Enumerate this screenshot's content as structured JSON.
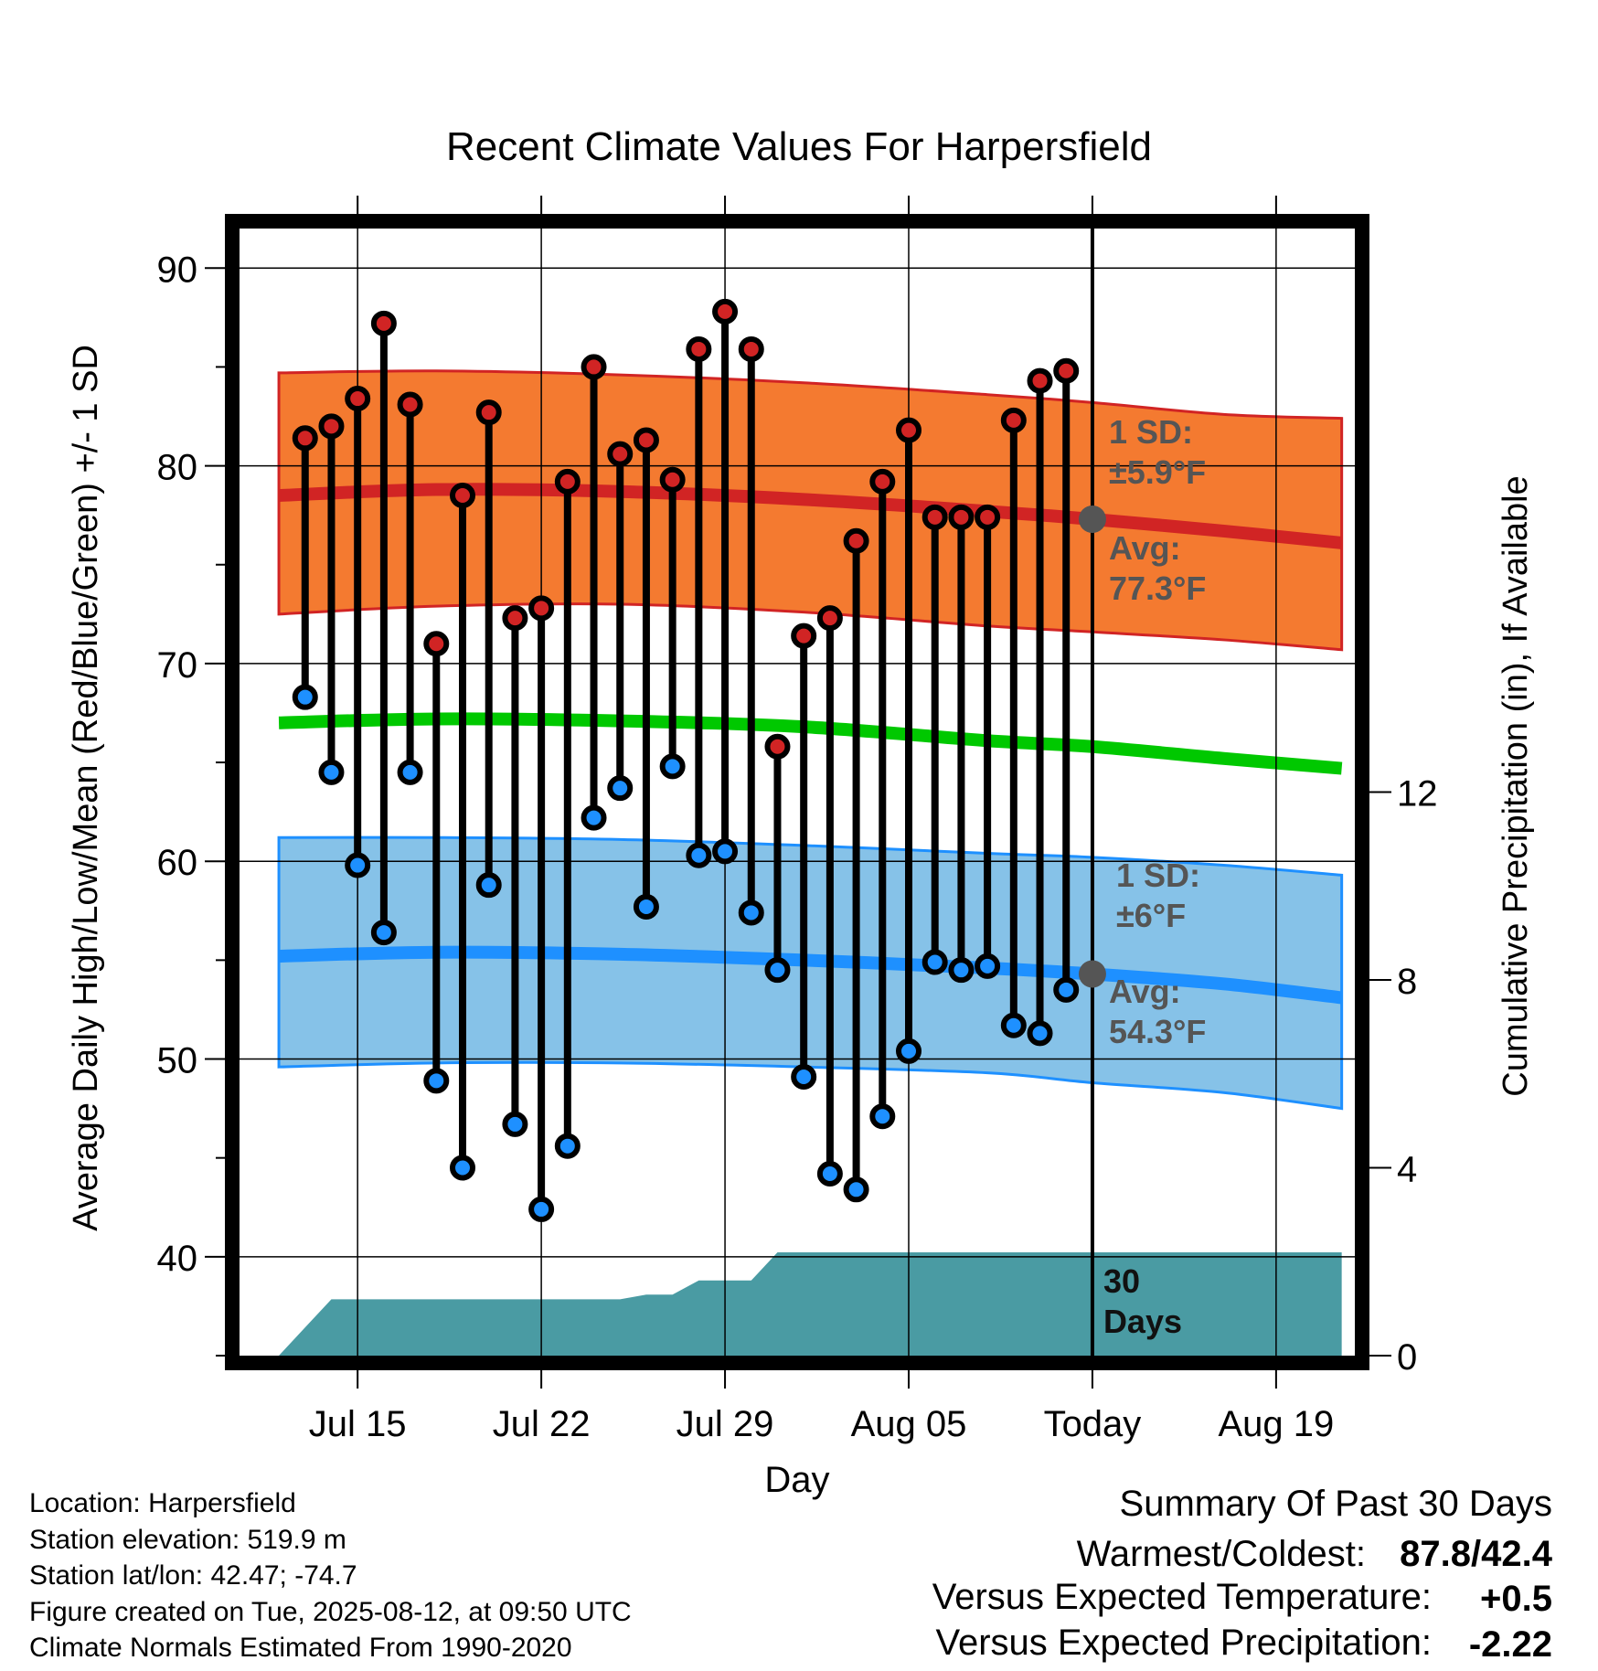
{
  "chart_data": {
    "type": "line",
    "title": "Recent Climate Values For Harpersfield",
    "xlabel": "Day",
    "ylabel": "Average Daily High/Low/Mean (Red/Blue/Green) +/- 1 SD",
    "ylabel_right": "Cumulative Precipitation (in), If Available",
    "ylim": [
      35,
      92
    ],
    "ylim_right": [
      0,
      24
    ],
    "x_range_days": [
      -32.5,
      10
    ],
    "x_ticks": [
      {
        "d": -28,
        "label": "Jul 15"
      },
      {
        "d": -21,
        "label": "Jul 22"
      },
      {
        "d": -14,
        "label": "Jul 29"
      },
      {
        "d": -7,
        "label": "Aug 05"
      },
      {
        "d": 0,
        "label": "Today"
      },
      {
        "d": 7,
        "label": "Aug 19"
      }
    ],
    "y_ticks": [
      40,
      50,
      60,
      70,
      80,
      90
    ],
    "y_ticks_right": [
      0,
      4,
      8,
      12
    ],
    "daily_highs": [
      81.4,
      82.0,
      83.4,
      87.2,
      83.1,
      71.0,
      78.5,
      82.7,
      72.3,
      72.8,
      79.2,
      85.0,
      80.6,
      81.3,
      79.3,
      85.9,
      87.8,
      85.9,
      65.8,
      71.4,
      72.3,
      76.2,
      79.2,
      81.8,
      77.4,
      77.4,
      77.4,
      82.3,
      84.3,
      84.8
    ],
    "daily_lows": [
      68.3,
      64.5,
      59.8,
      56.4,
      64.5,
      48.9,
      44.5,
      58.8,
      46.7,
      42.4,
      45.6,
      62.2,
      63.7,
      57.7,
      64.8,
      60.3,
      60.5,
      57.4,
      54.5,
      49.1,
      44.2,
      43.4,
      47.1,
      50.4,
      54.9,
      54.5,
      54.7,
      51.7,
      51.3,
      53.5
    ],
    "normal_high": {
      "x": [
        -31,
        -25,
        -18,
        -11,
        -4,
        0,
        5,
        9.5
      ],
      "values": [
        78.5,
        78.8,
        78.7,
        78.3,
        77.7,
        77.3,
        76.7,
        76.1
      ]
    },
    "normal_high_band": {
      "upper": [
        84.7,
        84.8,
        84.6,
        84.2,
        83.6,
        83.2,
        82.6,
        82.4
      ],
      "lower": [
        72.5,
        72.9,
        73.0,
        72.6,
        71.9,
        71.6,
        71.2,
        70.7
      ]
    },
    "normal_mean": {
      "x": [
        -31,
        -25,
        -18,
        -11,
        -4,
        0,
        5,
        9.5
      ],
      "values": [
        67.0,
        67.2,
        67.1,
        66.8,
        66.1,
        65.8,
        65.2,
        64.7
      ]
    },
    "normal_low": {
      "x": [
        -31,
        -25,
        -18,
        -11,
        -4,
        0,
        5,
        9.5
      ],
      "values": [
        55.2,
        55.4,
        55.3,
        55.0,
        54.6,
        54.3,
        53.8,
        53.1
      ]
    },
    "normal_low_band": {
      "upper": [
        61.2,
        61.2,
        61.1,
        60.8,
        60.4,
        60.2,
        59.8,
        59.3
      ],
      "lower": [
        49.6,
        49.8,
        49.8,
        49.6,
        49.3,
        48.8,
        48.3,
        47.5
      ]
    },
    "precip_cumulative": {
      "x": [
        -32,
        -31,
        -30,
        -29,
        -28,
        -27,
        -26,
        -25,
        -24,
        -23,
        -22,
        -21,
        -20,
        -19,
        -18,
        -17,
        -16,
        -15,
        -14,
        -13,
        -12,
        -11,
        -10,
        -9,
        -8,
        -7,
        -6,
        -5,
        -4,
        -3,
        -2,
        -1,
        0,
        9.5
      ],
      "values": [
        0,
        0,
        0.6,
        1.2,
        1.2,
        1.2,
        1.2,
        1.2,
        1.2,
        1.2,
        1.2,
        1.2,
        1.2,
        1.2,
        1.2,
        1.3,
        1.3,
        1.6,
        1.6,
        1.6,
        2.2,
        2.2,
        2.2,
        2.2,
        2.2,
        2.2,
        2.2,
        2.2,
        2.2,
        2.2,
        2.2,
        2.2,
        2.2,
        2.2
      ]
    },
    "today_high_marker": 77.3,
    "today_low_marker": 54.3,
    "annotations": {
      "high_sd": [
        "1 SD:",
        "±5.9°F"
      ],
      "high_avg": [
        "Avg:",
        "77.3°F"
      ],
      "low_sd": [
        "1 SD:",
        "±6°F"
      ],
      "low_avg": [
        "Avg:",
        "54.3°F"
      ],
      "precip": [
        "30",
        "Days"
      ]
    },
    "colors": {
      "high_band": "#f47a30",
      "high_line": "#d12424",
      "mean_line": "#00c800",
      "low_band": "#86c2e8",
      "low_line": "#1e90ff",
      "precip": "#4a9ba3",
      "high_dot": "#d12424",
      "low_dot": "#1e90ff",
      "annotation": "#555555"
    }
  },
  "footer": {
    "location": "Location: Harpersfield",
    "elevation": "Station elevation: 519.9 m",
    "latlon": "Station lat/lon: 42.47; -74.7",
    "created": "Figure created on Tue, 2025-08-12, at 09:50 UTC",
    "normals": "Climate Normals Estimated From 1990-2020"
  },
  "summary": {
    "title": "Summary Of Past 30 Days",
    "warm_cold_label": "Warmest/Coldest:",
    "warm_cold_value": "87.8/42.4",
    "temp_label": "Versus Expected Temperature:",
    "temp_value": "+0.5",
    "precip_label": "Versus Expected Precipitation:",
    "precip_value": "-2.22",
    "temp_value_color": "#d12424",
    "precip_value_color": "#a0522d"
  }
}
